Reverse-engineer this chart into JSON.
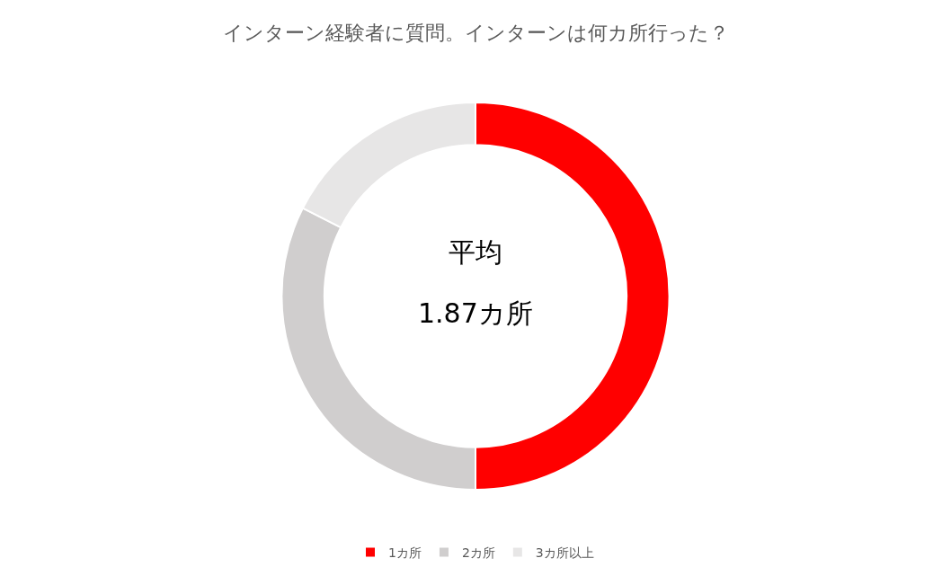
{
  "chart_data": {
    "type": "donut",
    "title": "インターン経験者に質問。インターンは何カ所行った？",
    "categories": [
      "1カ所",
      "2カ所",
      "3カ所以上"
    ],
    "values": [
      50,
      32.5,
      17.5
    ],
    "colors": [
      "#ff0000",
      "#d0cece",
      "#e7e6e6"
    ],
    "annotations": [
      "平均",
      "1.87カ所"
    ],
    "legend": "bottom"
  }
}
